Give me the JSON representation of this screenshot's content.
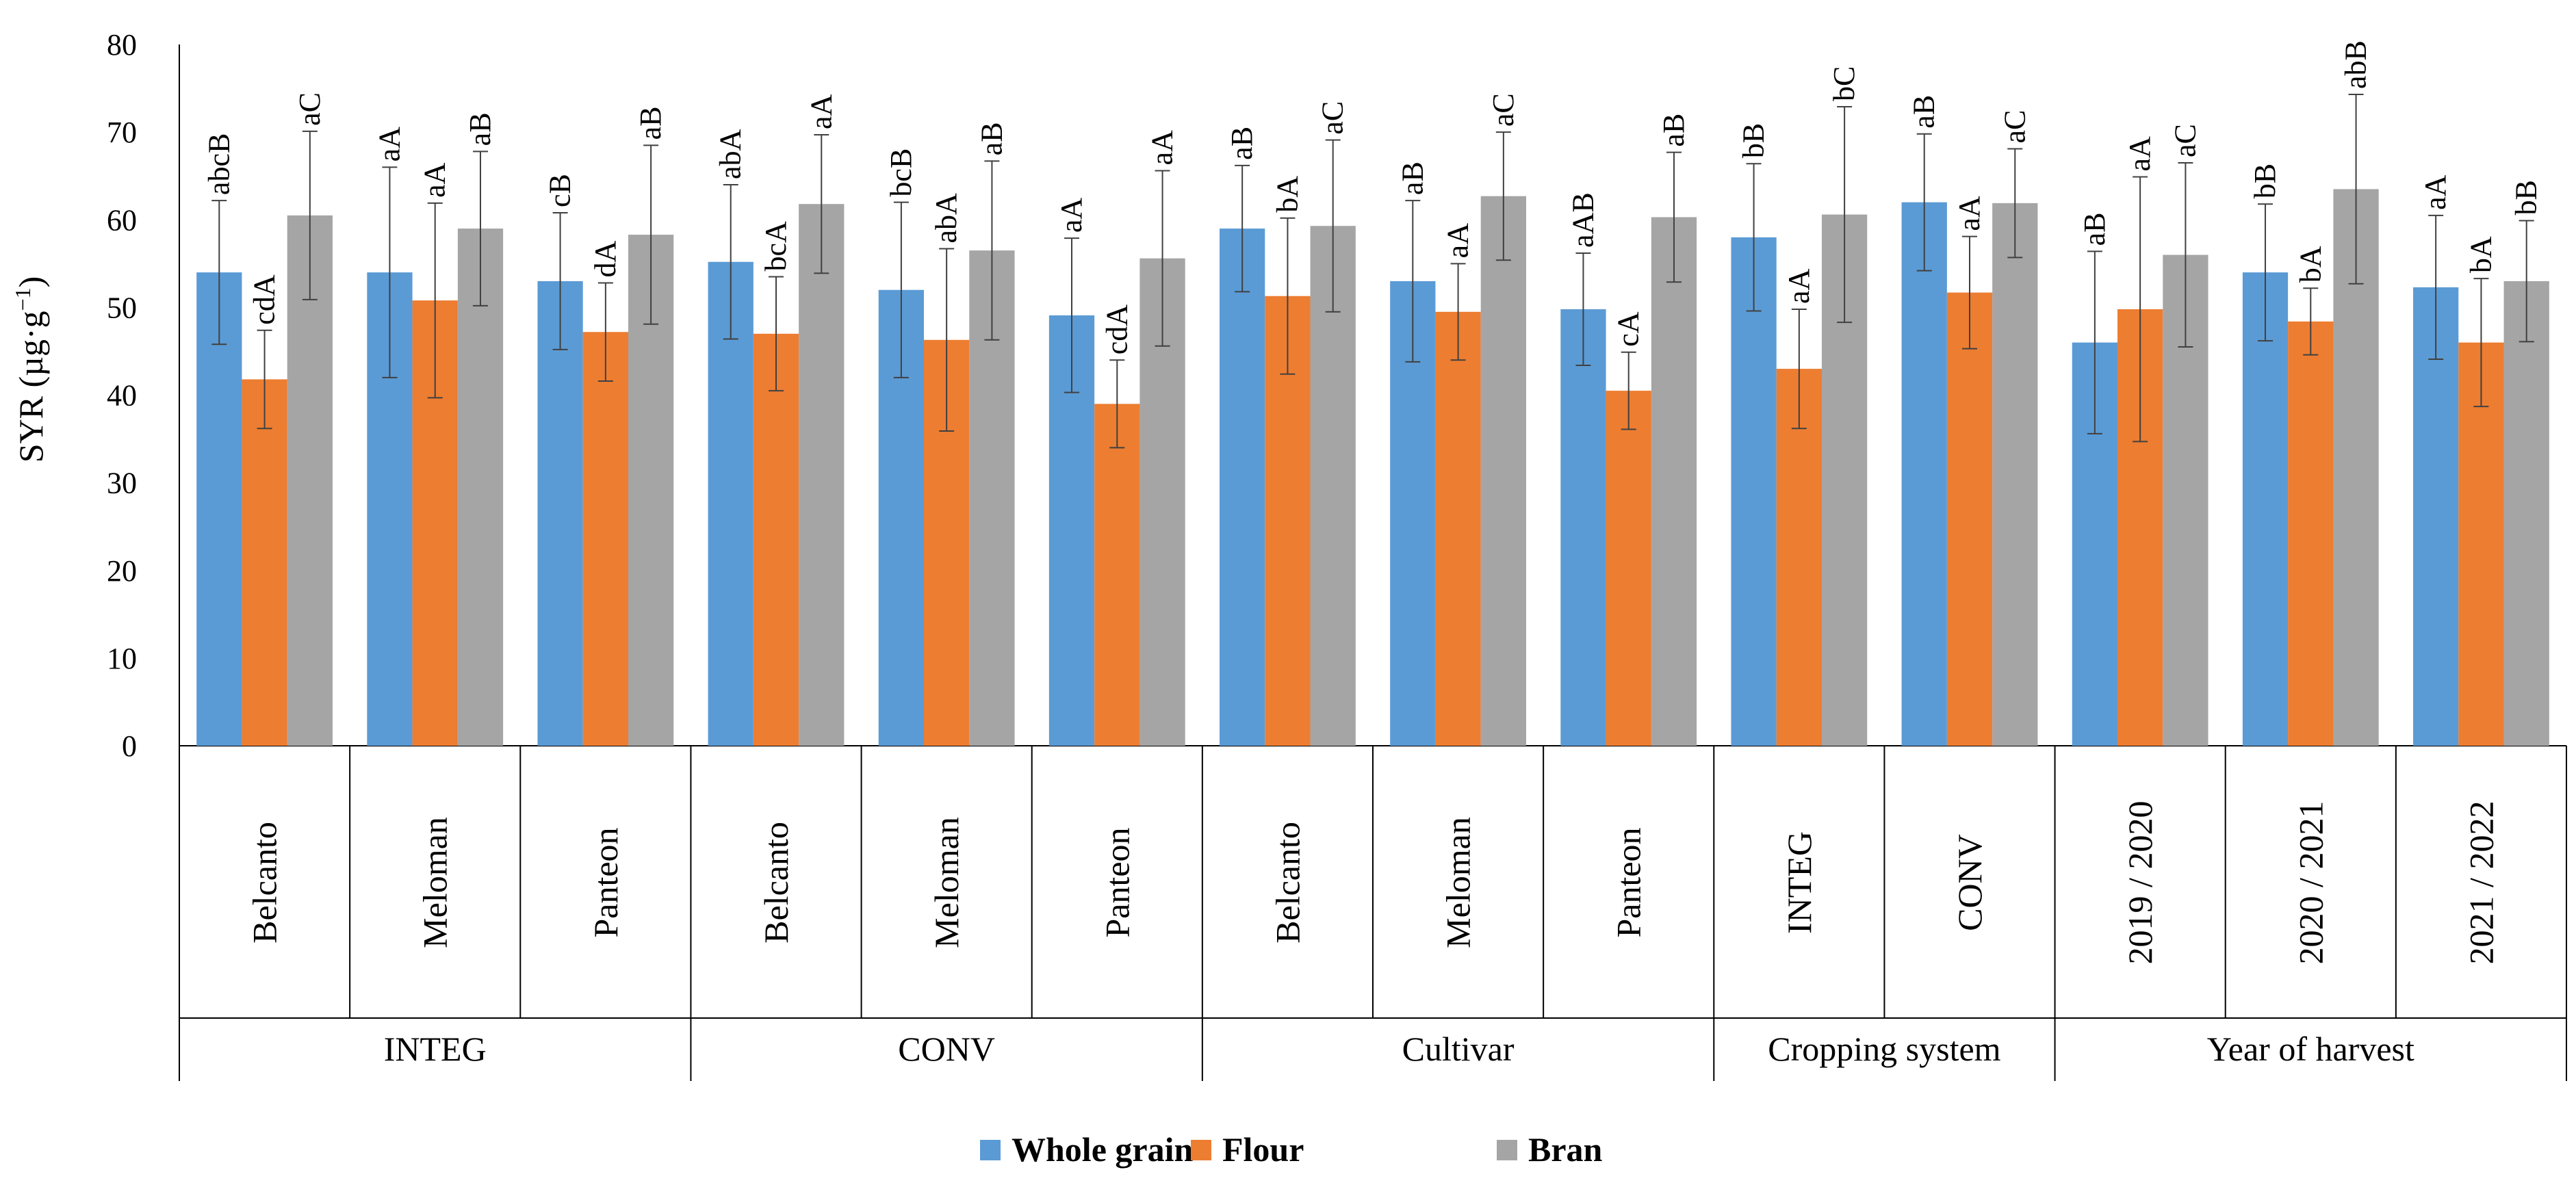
{
  "chart_data": {
    "type": "bar",
    "ylabel": "SYR (µg·g",
    "ylabel_sup": "−1",
    "ylabel_close": ")",
    "ylim": [
      0,
      80
    ],
    "yticks": [
      0,
      10,
      20,
      30,
      40,
      50,
      60,
      70,
      80
    ],
    "grid": false,
    "legend_position": "bottom",
    "colors": {
      "Whole grain": "#5b9bd5",
      "Flour": "#ed7d31",
      "Bran": "#a5a5a5"
    },
    "groups": [
      {
        "name": "INTEG",
        "categories": [
          "Belcanto",
          "Meloman",
          "Panteon"
        ]
      },
      {
        "name": "CONV",
        "categories": [
          "Belcanto",
          "Meloman",
          "Panteon"
        ]
      },
      {
        "name": "Cultivar",
        "categories": [
          "Belcanto",
          "Meloman",
          "Panteon"
        ]
      },
      {
        "name": "Cropping system",
        "categories": [
          "INTEG",
          "CONV"
        ]
      },
      {
        "name": "Year of harvest",
        "categories": [
          "2019 / 2020",
          "2020 / 2021",
          "2021 / 2022"
        ]
      }
    ],
    "series": [
      {
        "name": "Whole grain",
        "values": [
          54,
          54,
          53,
          55.2,
          52,
          49.1,
          59,
          53,
          49.8,
          58,
          62,
          46,
          54,
          52.3
        ],
        "errors": [
          8.2,
          12,
          7.8,
          8.8,
          10,
          8.8,
          7.2,
          9.2,
          6.4,
          8.4,
          7.8,
          10.4,
          7.8,
          8.2
        ],
        "labels": [
          "abcB",
          "aA",
          "cB",
          "abA",
          "bcB",
          "aA",
          "aB",
          "aB",
          "aAB",
          "bB",
          "aB",
          "aB",
          "bB",
          "aA"
        ]
      },
      {
        "name": "Flour",
        "values": [
          41.8,
          50.8,
          47.2,
          47,
          46.3,
          39,
          51.3,
          49.5,
          40.5,
          43,
          51.7,
          49.8,
          48.4,
          46
        ],
        "errors": [
          5.6,
          11.1,
          5.6,
          6.5,
          10.4,
          5,
          8.9,
          5.5,
          4.4,
          6.8,
          6.4,
          15.1,
          3.8,
          7.3
        ],
        "labels": [
          "cdA",
          "aA",
          "dA",
          "bcA",
          "abA",
          "cdA",
          "bA",
          "aA",
          "cA",
          "aA",
          "aA",
          "aA",
          "bA",
          "bA"
        ]
      },
      {
        "name": "Bran",
        "values": [
          60.5,
          59,
          58.3,
          61.8,
          56.5,
          55.6,
          59.3,
          62.7,
          60.3,
          60.6,
          61.9,
          56,
          63.5,
          53
        ],
        "errors": [
          9.6,
          8.8,
          10.2,
          7.9,
          10.2,
          10,
          9.8,
          7.3,
          7.4,
          12.3,
          6.2,
          10.5,
          10.8,
          6.9
        ],
        "labels": [
          "aC",
          "aB",
          "aB",
          "aA",
          "aB",
          "aA",
          "aC",
          "aC",
          "aB",
          "bC",
          "aC",
          "aC",
          "abB",
          "bB"
        ]
      }
    ]
  }
}
